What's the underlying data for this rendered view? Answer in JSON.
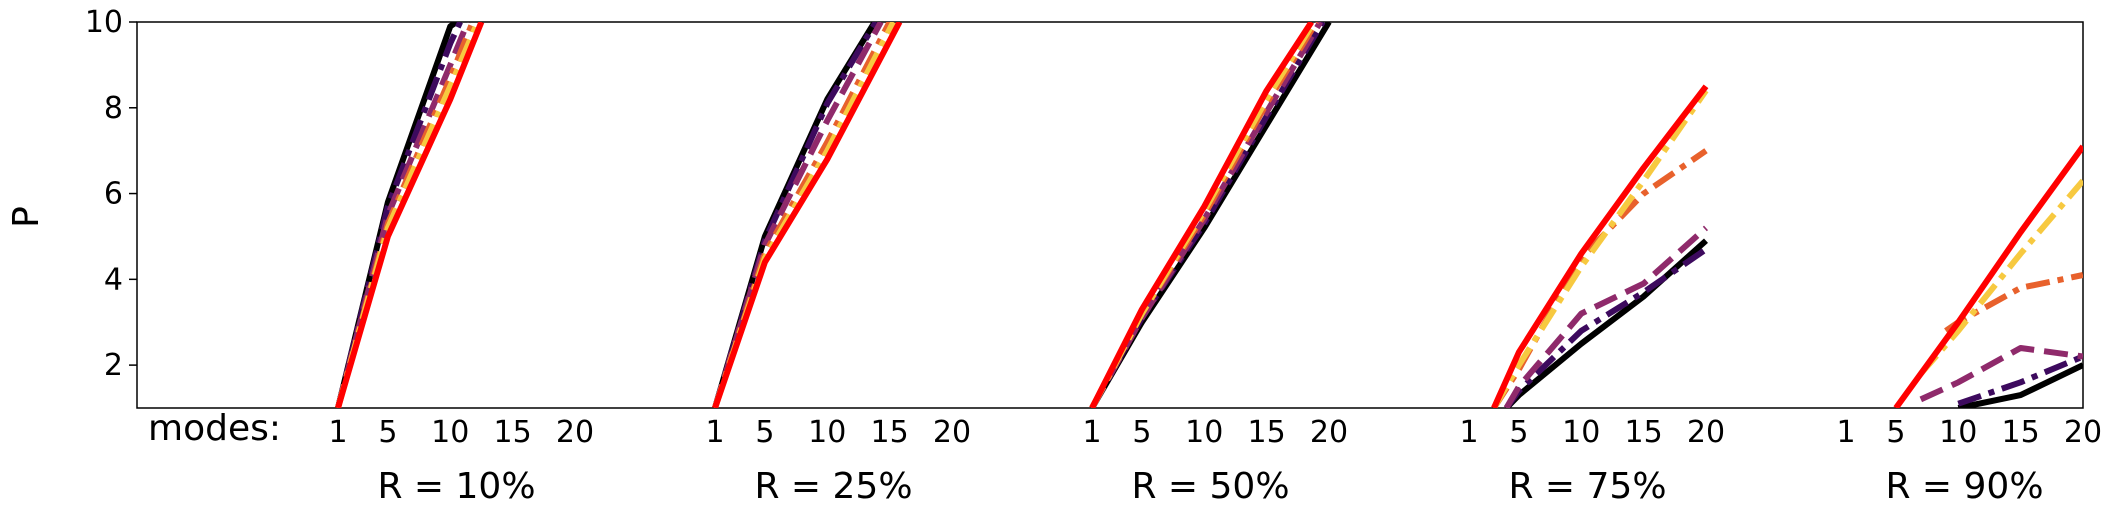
{
  "chart_data": {
    "type": "line",
    "ylabel": "P",
    "ylim": [
      1,
      10
    ],
    "yticks": [
      2,
      4,
      6,
      8,
      10
    ],
    "xlim": [
      1,
      20
    ],
    "xticks": [
      1,
      5,
      10,
      15,
      20
    ],
    "x_prefix": "modes:",
    "grid": false,
    "legend": "none",
    "series_colors": [
      "#000000",
      "#3d0a5e",
      "#8f2a6b",
      "#e8612c",
      "#f7c940",
      "#ff0000"
    ],
    "series_dashes": [
      "solid",
      "dashdot",
      "dashed",
      "dashdot",
      "dashdot",
      "solid"
    ],
    "panels": [
      {
        "label": "R = 10%",
        "series": [
          {
            "x": [
              1,
              5,
              10,
              10.5
            ],
            "y": [
              1,
              5.8,
              9.9,
              10
            ]
          },
          {
            "x": [
              1,
              5,
              10,
              10.8
            ],
            "y": [
              1,
              5.7,
              9.5,
              10
            ]
          },
          {
            "x": [
              1,
              5,
              10,
              11.4
            ],
            "y": [
              1,
              5.5,
              9.0,
              10
            ]
          },
          {
            "x": [
              1,
              5,
              10,
              11.8
            ],
            "y": [
              1,
              5.3,
              8.7,
              10
            ]
          },
          {
            "x": [
              1,
              5,
              10,
              12.2
            ],
            "y": [
              1,
              5.2,
              8.5,
              10
            ]
          },
          {
            "x": [
              1,
              5,
              10,
              12.5
            ],
            "y": [
              1,
              5.0,
              8.2,
              10
            ]
          }
        ]
      },
      {
        "label": "R = 25%",
        "series": [
          {
            "x": [
              1,
              5,
              10,
              13.8
            ],
            "y": [
              1,
              5.0,
              8.2,
              10
            ]
          },
          {
            "x": [
              1,
              5,
              10,
              13.9
            ],
            "y": [
              1,
              4.9,
              8.1,
              10
            ]
          },
          {
            "x": [
              1,
              5,
              10,
              14.3
            ],
            "y": [
              1,
              4.8,
              7.7,
              10
            ]
          },
          {
            "x": [
              1,
              5,
              10,
              15.0
            ],
            "y": [
              1,
              4.6,
              7.2,
              10
            ]
          },
          {
            "x": [
              1,
              5,
              10,
              15.3
            ],
            "y": [
              1,
              4.5,
              7.0,
              10
            ]
          },
          {
            "x": [
              1,
              5,
              10,
              15.8
            ],
            "y": [
              1,
              4.4,
              6.8,
              10
            ]
          }
        ]
      },
      {
        "label": "R = 50%",
        "series": [
          {
            "x": [
              1,
              5,
              10,
              15,
              20
            ],
            "y": [
              1,
              3.0,
              5.2,
              7.6,
              10
            ]
          },
          {
            "x": [
              1,
              5,
              10,
              15,
              19.5
            ],
            "y": [
              1,
              3.1,
              5.3,
              7.8,
              10
            ]
          },
          {
            "x": [
              1,
              5,
              10,
              15,
              19.3
            ],
            "y": [
              1,
              3.1,
              5.4,
              7.9,
              10
            ]
          },
          {
            "x": [
              1,
              5,
              10,
              15,
              19.0
            ],
            "y": [
              1,
              3.2,
              5.5,
              8.1,
              10
            ]
          },
          {
            "x": [
              1,
              5,
              10,
              15,
              18.8
            ],
            "y": [
              1,
              3.2,
              5.6,
              8.2,
              10
            ]
          },
          {
            "x": [
              1,
              5,
              10,
              15,
              18.6
            ],
            "y": [
              1,
              3.3,
              5.7,
              8.4,
              10
            ]
          }
        ]
      },
      {
        "label": "R = 75%",
        "series": [
          {
            "x": [
              4,
              5,
              10,
              15,
              20
            ],
            "y": [
              1,
              1.3,
              2.5,
              3.6,
              4.9
            ]
          },
          {
            "x": [
              4,
              5,
              10,
              15,
              20
            ],
            "y": [
              1,
              1.4,
              2.8,
              3.7,
              4.7
            ]
          },
          {
            "x": [
              4,
              5,
              10,
              15,
              20
            ],
            "y": [
              1,
              1.5,
              3.2,
              3.9,
              5.2
            ]
          },
          {
            "x": [
              3,
              5,
              10,
              15,
              20
            ],
            "y": [
              1,
              1.9,
              4.5,
              6.0,
              7.0
            ]
          },
          {
            "x": [
              3,
              5,
              10,
              15,
              20
            ],
            "y": [
              1,
              2.0,
              4.3,
              6.3,
              8.4
            ]
          },
          {
            "x": [
              3,
              5,
              10,
              15,
              20
            ],
            "y": [
              1,
              2.3,
              4.6,
              6.6,
              8.5
            ]
          }
        ]
      },
      {
        "label": "R = 90%",
        "series": [
          {
            "x": [
              10,
              15,
              20
            ],
            "y": [
              1,
              1.3,
              2.0
            ]
          },
          {
            "x": [
              10,
              15,
              20
            ],
            "y": [
              1.1,
              1.6,
              2.2
            ]
          },
          {
            "x": [
              7,
              10,
              15,
              20
            ],
            "y": [
              1.2,
              1.6,
              2.4,
              2.2
            ]
          },
          {
            "x": [
              9,
              10,
              15,
              20
            ],
            "y": [
              2.8,
              3.0,
              3.8,
              4.1
            ]
          },
          {
            "x": [
              7,
              10,
              15,
              20
            ],
            "y": [
              1.8,
              2.8,
              4.6,
              6.3
            ]
          },
          {
            "x": [
              5,
              10,
              15,
              20
            ],
            "y": [
              1,
              3.0,
              5.1,
              7.1
            ]
          }
        ]
      }
    ]
  }
}
